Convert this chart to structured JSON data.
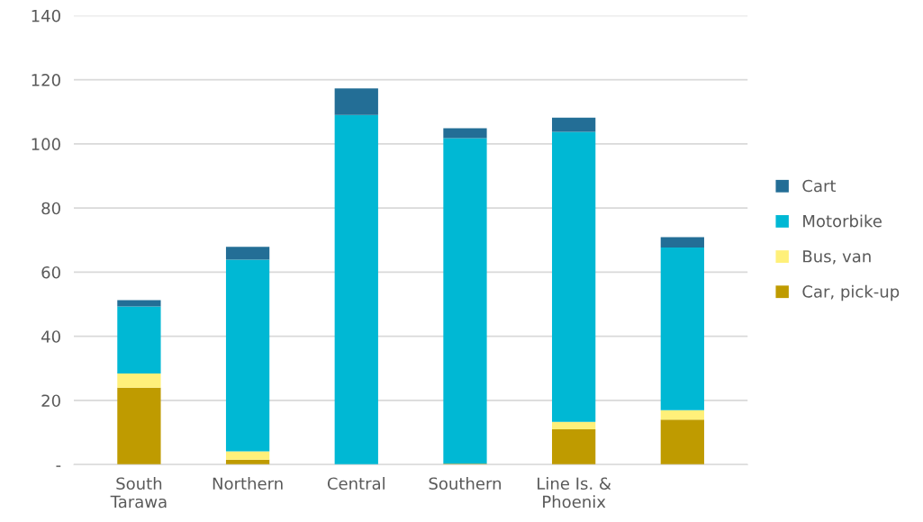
{
  "chart_data": {
    "type": "bar",
    "stacked": true,
    "categories": [
      "South\nTarawa",
      "Northern",
      "Central",
      "Southern",
      "Line Is. &\nPhoenix",
      null
    ],
    "series": [
      {
        "name": "Car, pick-up",
        "color": "#bf9b00",
        "values": [
          24.0,
          1.5,
          0,
          0.3,
          11.0,
          14.0
        ]
      },
      {
        "name": "Bus, van",
        "color": "#fff07a",
        "values": [
          4.4,
          2.6,
          0,
          0,
          2.3,
          3.0
        ]
      },
      {
        "name": "Motorbike",
        "color": "#00b8d4",
        "values": [
          20.9,
          59.8,
          109.0,
          101.5,
          90.5,
          50.7
        ]
      },
      {
        "name": "Cart",
        "color": "#236e96",
        "values": [
          2.0,
          4.0,
          8.3,
          3.1,
          4.4,
          3.2
        ]
      }
    ],
    "ylim": [
      0,
      140
    ],
    "yticks": [
      {
        "value": 0,
        "label": "-"
      },
      20,
      40,
      60,
      80,
      100,
      120,
      140
    ],
    "grid": "y",
    "legend": "right"
  }
}
